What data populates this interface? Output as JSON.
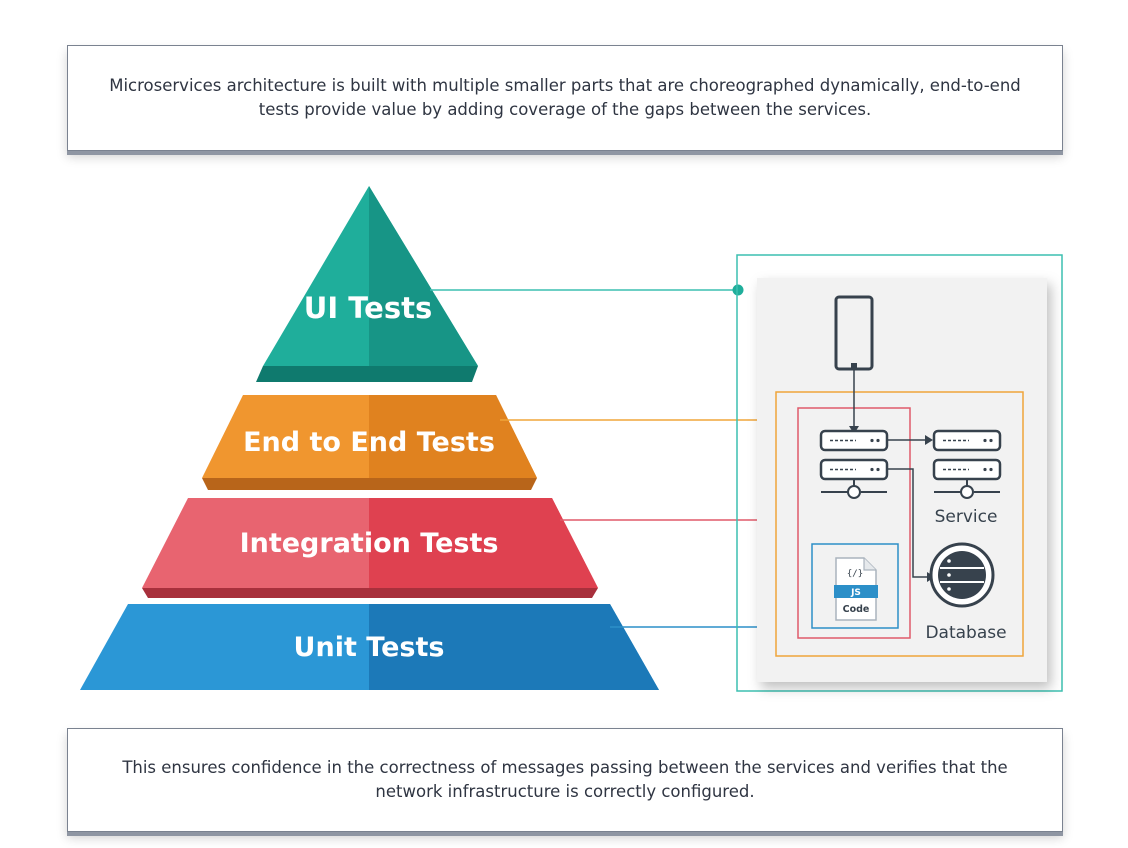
{
  "intro_text": "Microservices architecture is built with multiple smaller parts that are choreographed dynamically, end-to-end tests provide value by adding coverage  of the gaps between the services.",
  "conclusion_text": "This ensures confidence in the correctness of messages passing between the services and verifies that the network infrastructure is correctly configured.",
  "pyramid": {
    "layers": [
      {
        "label": "UI Tests",
        "color": "#1fae9b"
      },
      {
        "label": "End to End Tests",
        "color": "#f0962f"
      },
      {
        "label": "Integration Tests",
        "color": "#e5515b"
      },
      {
        "label": "Unit Tests",
        "color": "#1c87c9"
      }
    ]
  },
  "architecture": {
    "service_label": "Service",
    "database_label": "Database",
    "code_file": {
      "braces": "{/}",
      "ext": "JS",
      "caption": "Code"
    },
    "colors": {
      "outer": "#3cbfb0",
      "orange": "#f0a53a",
      "red": "#e05a6a",
      "blue": "#2c8fc8",
      "icon": "#37424d"
    }
  }
}
